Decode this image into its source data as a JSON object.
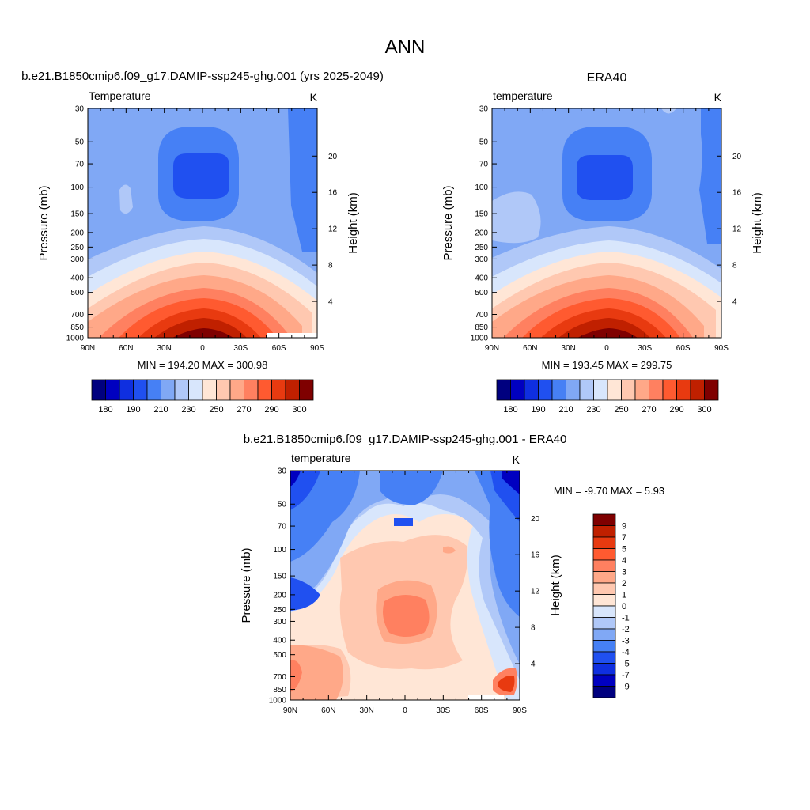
{
  "page_title": "ANN",
  "chart_data": [
    {
      "type": "heatmap",
      "title": "b.e21.B1850cmip6.f09_g17.DAMIP-ssp245-ghg.001 (yrs 2025-2049)",
      "variable_label": "Temperature",
      "units": "K",
      "ylabel": "Pressure (mb)",
      "ylabel_right": "Height (km)",
      "x_ticks": [
        "90N",
        "60N",
        "30N",
        "0",
        "30S",
        "60S",
        "90S"
      ],
      "x_range": [
        90,
        -90
      ],
      "y_ticks": [
        "30",
        "50",
        "70",
        "100",
        "150",
        "200",
        "250",
        "300",
        "400",
        "500",
        "700",
        "850",
        "1000"
      ],
      "y_range": [
        30,
        1000
      ],
      "y_scale": "log",
      "height_ticks": [
        "4",
        "8",
        "12",
        "16",
        "20"
      ],
      "stats": "MIN = 194.20  MAX = 300.98",
      "colorbar_labels": [
        "180",
        "190",
        "210",
        "230",
        "250",
        "270",
        "290",
        "300"
      ],
      "colorbar_colors": [
        "#00007f",
        "#0000c0",
        "#0f2fe0",
        "#2050f0",
        "#4680f5",
        "#80a8f5",
        "#b0c8f8",
        "#d8e6fc",
        "#ffe6d6",
        "#ffc8b0",
        "#ffa888",
        "#ff8060",
        "#ff5a30",
        "#e83a10",
        "#c02000",
        "#7f0000"
      ]
    },
    {
      "type": "heatmap",
      "title": "ERA40",
      "variable_label": "temperature",
      "units": "K",
      "ylabel": "Pressure (mb)",
      "ylabel_right": "Height (km)",
      "x_ticks": [
        "90N",
        "60N",
        "30N",
        "0",
        "30S",
        "60S",
        "90S"
      ],
      "x_range": [
        90,
        -90
      ],
      "y_ticks": [
        "30",
        "50",
        "70",
        "100",
        "150",
        "200",
        "250",
        "300",
        "400",
        "500",
        "700",
        "850",
        "1000"
      ],
      "y_range": [
        30,
        1000
      ],
      "y_scale": "log",
      "height_ticks": [
        "4",
        "8",
        "12",
        "16",
        "20"
      ],
      "stats": "MIN = 193.45  MAX = 299.75",
      "colorbar_labels": [
        "180",
        "190",
        "210",
        "230",
        "250",
        "270",
        "290",
        "300"
      ],
      "colorbar_colors": [
        "#00007f",
        "#0000c0",
        "#0f2fe0",
        "#2050f0",
        "#4680f5",
        "#80a8f5",
        "#b0c8f8",
        "#d8e6fc",
        "#ffe6d6",
        "#ffc8b0",
        "#ffa888",
        "#ff8060",
        "#ff5a30",
        "#e83a10",
        "#c02000",
        "#7f0000"
      ]
    },
    {
      "type": "heatmap",
      "title": "b.e21.B1850cmip6.f09_g17.DAMIP-ssp245-ghg.001 - ERA40",
      "variable_label": "temperature",
      "units": "K",
      "ylabel": "Pressure (mb)",
      "ylabel_right": "Height (km)",
      "x_ticks": [
        "90N",
        "60N",
        "30N",
        "0",
        "30S",
        "60S",
        "90S"
      ],
      "x_range": [
        90,
        -90
      ],
      "y_ticks": [
        "30",
        "50",
        "70",
        "100",
        "150",
        "200",
        "250",
        "300",
        "400",
        "500",
        "700",
        "850",
        "1000"
      ],
      "y_range": [
        30,
        1000
      ],
      "y_scale": "log",
      "height_ticks": [
        "4",
        "8",
        "12",
        "16",
        "20"
      ],
      "stats": "MIN =  -9.70  MAX =   5.93",
      "colorbar_labels": [
        "9",
        "7",
        "5",
        "4",
        "3",
        "2",
        "1",
        "0",
        "-1",
        "-2",
        "-3",
        "-4",
        "-5",
        "-7",
        "-9"
      ],
      "colorbar_colors": [
        "#7f0000",
        "#c02000",
        "#e83a10",
        "#ff5a30",
        "#ff8060",
        "#ffa888",
        "#ffc8b0",
        "#ffe6d6",
        "#d8e6fc",
        "#b0c8f8",
        "#80a8f5",
        "#4680f5",
        "#2050f0",
        "#0f2fe0",
        "#0000c0",
        "#00007f"
      ]
    }
  ]
}
